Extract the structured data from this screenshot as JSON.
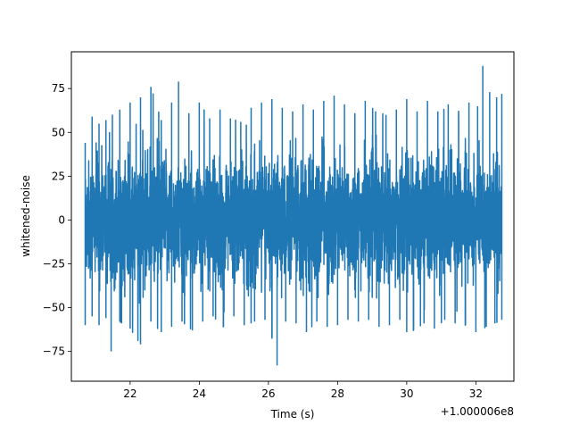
{
  "chart_data": {
    "type": "line",
    "xlabel": "Time (s)",
    "ylabel": "whitened-noise",
    "x_offset_label": "+1.000006e8",
    "xlim": [
      20.3,
      33.1
    ],
    "ylim": [
      -92,
      96
    ],
    "xticks": [
      22,
      24,
      26,
      28,
      30,
      32
    ],
    "yticks": [
      -75,
      -50,
      -25,
      0,
      25,
      50,
      75
    ],
    "ytick_labels": [
      "−75",
      "−50",
      "−25",
      "0",
      "25",
      "50",
      "75"
    ],
    "grid": false,
    "series": [
      {
        "color": "#1f77b4",
        "x_start": 20.7,
        "x_end": 32.75,
        "envelope": {
          "upper": [
            [
              20.7,
              44
            ],
            [
              20.9,
              59
            ],
            [
              21.1,
              55
            ],
            [
              21.3,
              57
            ],
            [
              21.7,
              63
            ],
            [
              22.0,
              67
            ],
            [
              22.3,
              70
            ],
            [
              22.6,
              76
            ],
            [
              22.9,
              57
            ],
            [
              23.2,
              67
            ],
            [
              23.4,
              79
            ],
            [
              23.7,
              61
            ],
            [
              24.0,
              67
            ],
            [
              24.3,
              58
            ],
            [
              24.6,
              63
            ],
            [
              24.9,
              58
            ],
            [
              25.2,
              56
            ],
            [
              25.5,
              64
            ],
            [
              25.8,
              67
            ],
            [
              26.1,
              69
            ],
            [
              26.4,
              64
            ],
            [
              26.7,
              62
            ],
            [
              27.0,
              66
            ],
            [
              27.3,
              63
            ],
            [
              27.6,
              68
            ],
            [
              27.9,
              71
            ],
            [
              28.2,
              66
            ],
            [
              28.5,
              61
            ],
            [
              28.8,
              68
            ],
            [
              29.1,
              62
            ],
            [
              29.4,
              60
            ],
            [
              29.7,
              63
            ],
            [
              30.0,
              69
            ],
            [
              30.3,
              62
            ],
            [
              30.6,
              68
            ],
            [
              30.9,
              62
            ],
            [
              31.2,
              66
            ],
            [
              31.5,
              62
            ],
            [
              31.8,
              67
            ],
            [
              32.05,
              65
            ],
            [
              32.2,
              88
            ],
            [
              32.4,
              73
            ],
            [
              32.6,
              70
            ],
            [
              32.75,
              72
            ]
          ],
          "lower": [
            [
              20.7,
              -60
            ],
            [
              20.9,
              -55
            ],
            [
              21.1,
              -60
            ],
            [
              21.3,
              -56
            ],
            [
              21.45,
              -75
            ],
            [
              21.7,
              -58
            ],
            [
              22.0,
              -62
            ],
            [
              22.3,
              -71
            ],
            [
              22.6,
              -58
            ],
            [
              22.9,
              -64
            ],
            [
              23.2,
              -61
            ],
            [
              23.5,
              -58
            ],
            [
              23.8,
              -63
            ],
            [
              24.1,
              -58
            ],
            [
              24.4,
              -55
            ],
            [
              24.7,
              -61
            ],
            [
              25.0,
              -55
            ],
            [
              25.3,
              -60
            ],
            [
              25.6,
              -58
            ],
            [
              25.9,
              -57
            ],
            [
              26.1,
              -67
            ],
            [
              26.25,
              -83
            ],
            [
              26.5,
              -58
            ],
            [
              26.8,
              -59
            ],
            [
              27.1,
              -64
            ],
            [
              27.4,
              -58
            ],
            [
              27.7,
              -61
            ],
            [
              28.0,
              -60
            ],
            [
              28.3,
              -57
            ],
            [
              28.6,
              -58
            ],
            [
              28.9,
              -57
            ],
            [
              29.2,
              -61
            ],
            [
              29.5,
              -60
            ],
            [
              29.8,
              -57
            ],
            [
              30.0,
              -64
            ],
            [
              30.2,
              -63
            ],
            [
              30.5,
              -59
            ],
            [
              30.8,
              -62
            ],
            [
              31.1,
              -57
            ],
            [
              31.4,
              -59
            ],
            [
              31.7,
              -60
            ],
            [
              32.0,
              -64
            ],
            [
              32.3,
              -61
            ],
            [
              32.55,
              -59
            ],
            [
              32.75,
              -57
            ]
          ],
          "typical_band": [
            -40,
            40
          ]
        }
      }
    ]
  }
}
